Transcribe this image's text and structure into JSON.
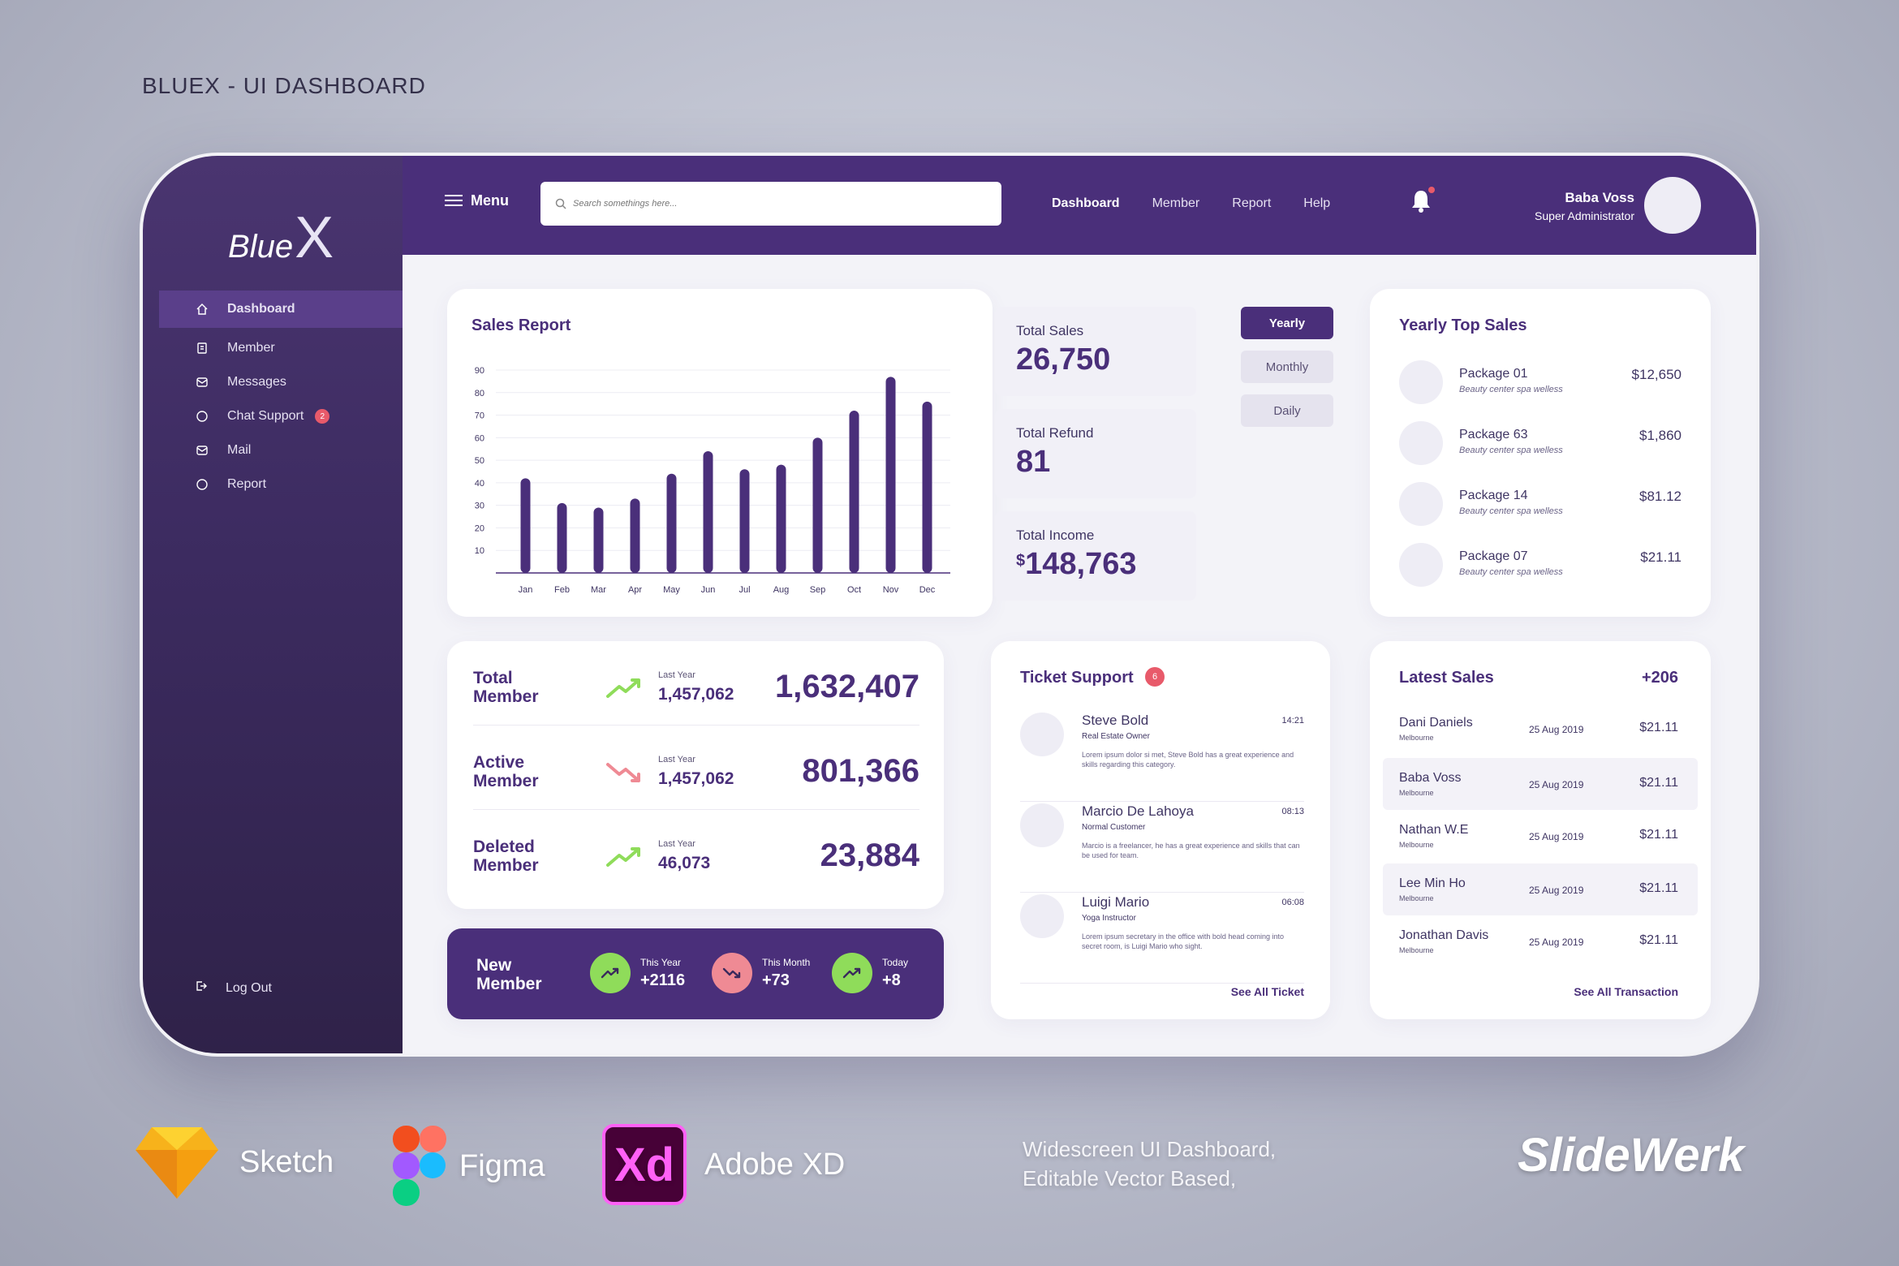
{
  "heading": "BLUEX - UI DASHBOARD",
  "logo": {
    "text": "Blue",
    "mark": "X"
  },
  "sidebar": {
    "items": [
      {
        "label": "Dashboard",
        "icon": "home-icon",
        "active": true
      },
      {
        "label": "Member",
        "icon": "member-icon"
      },
      {
        "label": "Messages",
        "icon": "messages-icon"
      },
      {
        "label": "Chat Support",
        "icon": "chat-icon",
        "badge": "2"
      },
      {
        "label": "Mail",
        "icon": "mail-icon"
      },
      {
        "label": "Report",
        "icon": "report-icon"
      }
    ],
    "logout": "Log Out"
  },
  "topbar": {
    "menu": "Menu",
    "search_placeholder": "Search somethings here...",
    "nav": [
      "Dashboard",
      "Member",
      "Report",
      "Help"
    ],
    "user_name": "Baba Voss",
    "user_role": "Super Administrator"
  },
  "sales_report": {
    "title": "Sales Report",
    "total_sales_label": "Total Sales",
    "total_sales": "26,750",
    "total_refund_label": "Total Refund",
    "total_refund": "81",
    "total_income_label": "Total Income",
    "total_income_currency": "$",
    "total_income": "148,763"
  },
  "chart_data": {
    "type": "bar",
    "title": "Sales Report",
    "categories": [
      "Jan",
      "Feb",
      "Mar",
      "Apr",
      "May",
      "Jun",
      "Jul",
      "Aug",
      "Sep",
      "Oct",
      "Nov",
      "Dec"
    ],
    "values": [
      42,
      31,
      29,
      33,
      44,
      54,
      46,
      48,
      60,
      72,
      87,
      76
    ],
    "yticks": [
      10,
      20,
      30,
      40,
      50,
      60,
      70,
      80,
      90
    ],
    "ylim": [
      0,
      90
    ],
    "grid": true,
    "color": "#4a2f7a"
  },
  "periods": [
    "Yearly",
    "Monthly",
    "Daily"
  ],
  "top_sales": {
    "title": "Yearly Top Sales",
    "items": [
      {
        "name": "Package 01",
        "desc": "Beauty center spa welless",
        "price": "$12,650"
      },
      {
        "name": "Package 63",
        "desc": "Beauty center spa welless",
        "price": "$1,860"
      },
      {
        "name": "Package 14",
        "desc": "Beauty center spa welless",
        "price": "$81.12"
      },
      {
        "name": "Package 07",
        "desc": "Beauty center spa welless",
        "price": "$21.11"
      }
    ]
  },
  "members": [
    {
      "label": "Total Member",
      "trend": "up",
      "last_label": "Last Year",
      "last": "1,457,062",
      "value": "1,632,407"
    },
    {
      "label": "Active Member",
      "trend": "down",
      "last_label": "Last Year",
      "last": "1,457,062",
      "value": "801,366"
    },
    {
      "label": "Deleted Member",
      "trend": "up",
      "last_label": "Last Year",
      "last": "46,073",
      "value": "23,884"
    }
  ],
  "new_member": {
    "label": "New Member",
    "items": [
      {
        "label": "This Year",
        "value": "+2116",
        "trend": "up"
      },
      {
        "label": "This Month",
        "value": "+73",
        "trend": "down"
      },
      {
        "label": "Today",
        "value": "+8",
        "trend": "up"
      }
    ]
  },
  "tickets": {
    "title": "Ticket Support",
    "badge": "6",
    "see_all": "See All Ticket",
    "items": [
      {
        "name": "Steve Bold",
        "role": "Real Estate Owner",
        "time": "14:21",
        "msg": "Lorem ipsum dolor si met, Steve Bold has a great experience and skills regarding this category."
      },
      {
        "name": "Marcio De Lahoya",
        "role": "Normal Customer",
        "time": "08:13",
        "msg": "Marcio is a freelancer, he has a great experience and skills that can be used for team."
      },
      {
        "name": "Luigi Mario",
        "role": "Yoga Instructor",
        "time": "06:08",
        "msg": "Lorem ipsum secretary in the office with bold head coming into secret room, is Luigi Mario who sight."
      }
    ]
  },
  "latest_sales": {
    "title": "Latest Sales",
    "count": "+206",
    "see_all": "See All Transaction",
    "items": [
      {
        "name": "Dani Daniels",
        "loc": "Melbourne",
        "date": "25 Aug 2019",
        "price": "$21.11"
      },
      {
        "name": "Baba Voss",
        "loc": "Melbourne",
        "date": "25 Aug 2019",
        "price": "$21.11"
      },
      {
        "name": "Nathan W.E",
        "loc": "Melbourne",
        "date": "25 Aug 2019",
        "price": "$21.11"
      },
      {
        "name": "Lee Min Ho",
        "loc": "Melbourne",
        "date": "25 Aug 2019",
        "price": "$21.11"
      },
      {
        "name": "Jonathan Davis",
        "loc": "Melbourne",
        "date": "25 Aug 2019",
        "price": "$21.11"
      }
    ]
  },
  "tools": [
    "Sketch",
    "Figma",
    "Adobe XD"
  ],
  "xd_mark": "Xd",
  "tagline": [
    "Widescreen UI Dashboard,",
    "Editable Vector Based,"
  ],
  "brand": "SlideWerk"
}
